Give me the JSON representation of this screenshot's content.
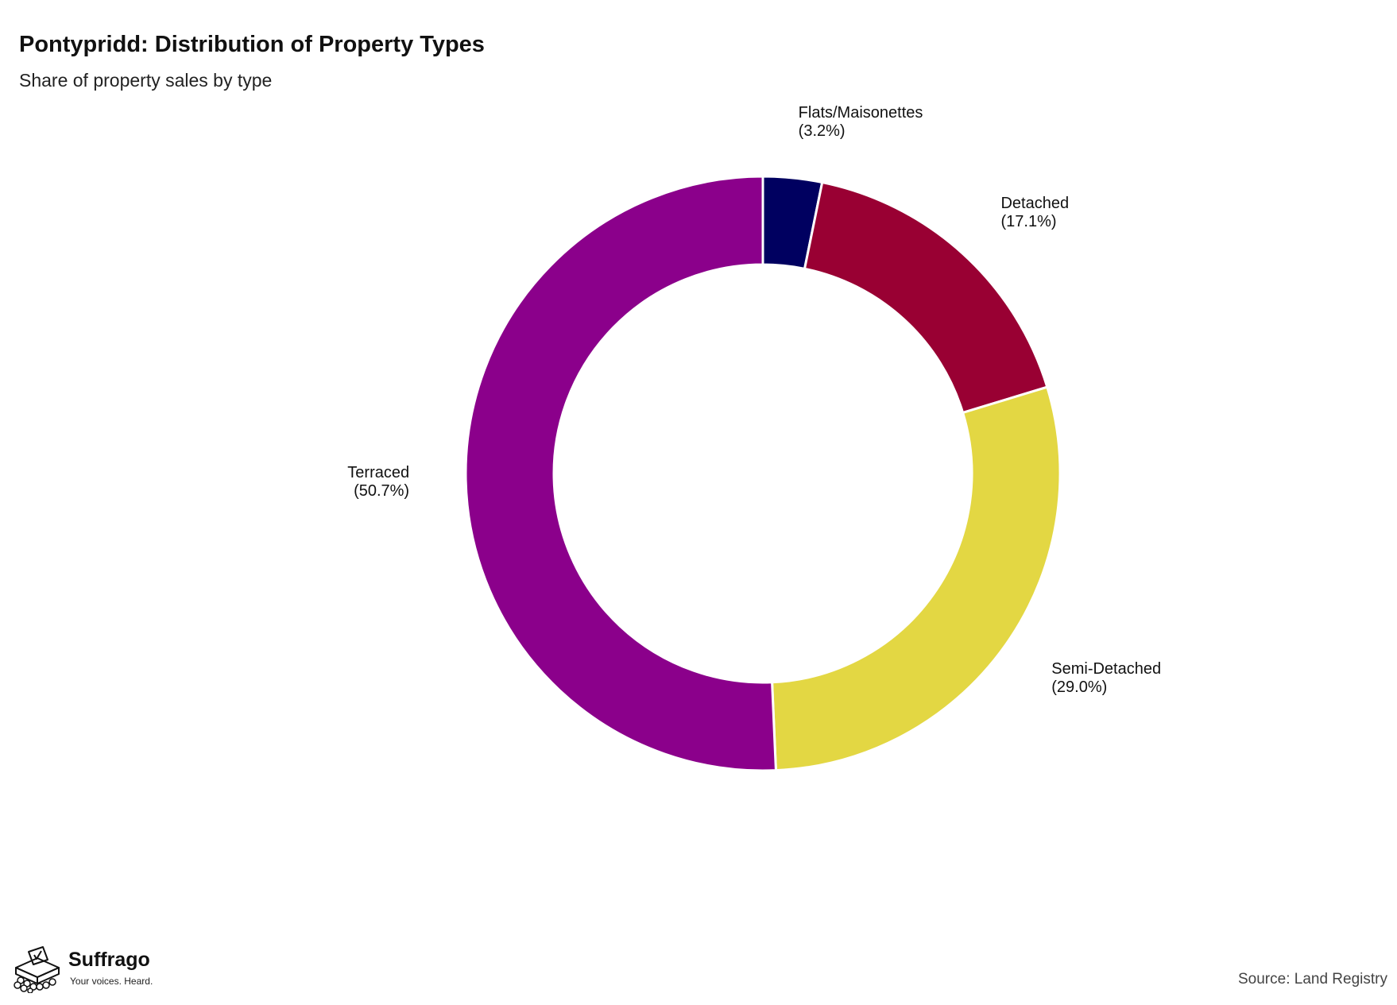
{
  "header": {
    "title": "Pontypridd: Distribution of Property Types",
    "subtitle": "Share of property sales by type"
  },
  "chart_data": {
    "type": "pie",
    "style": "donut",
    "title": "Pontypridd: Distribution of Property Types",
    "subtitle": "Share of property sales by type",
    "start": "top",
    "direction": "clockwise",
    "slices": [
      {
        "label": "Flats/Maisonettes",
        "value": 3.2,
        "value_label": "(3.2%)",
        "color": "#000060"
      },
      {
        "label": "Detached",
        "value": 17.1,
        "value_label": "(17.1%)",
        "color": "#990033"
      },
      {
        "label": "Semi-Detached",
        "value": 29.0,
        "value_label": "(29.0%)",
        "color": "#e3d743"
      },
      {
        "label": "Terraced",
        "value": 50.7,
        "value_label": "(50.7%)",
        "color": "#8b008b"
      }
    ]
  },
  "branding": {
    "logo_name": "Suffrago",
    "logo_tagline": "Your voices. Heard."
  },
  "footer": {
    "source": "Source: Land Registry"
  }
}
